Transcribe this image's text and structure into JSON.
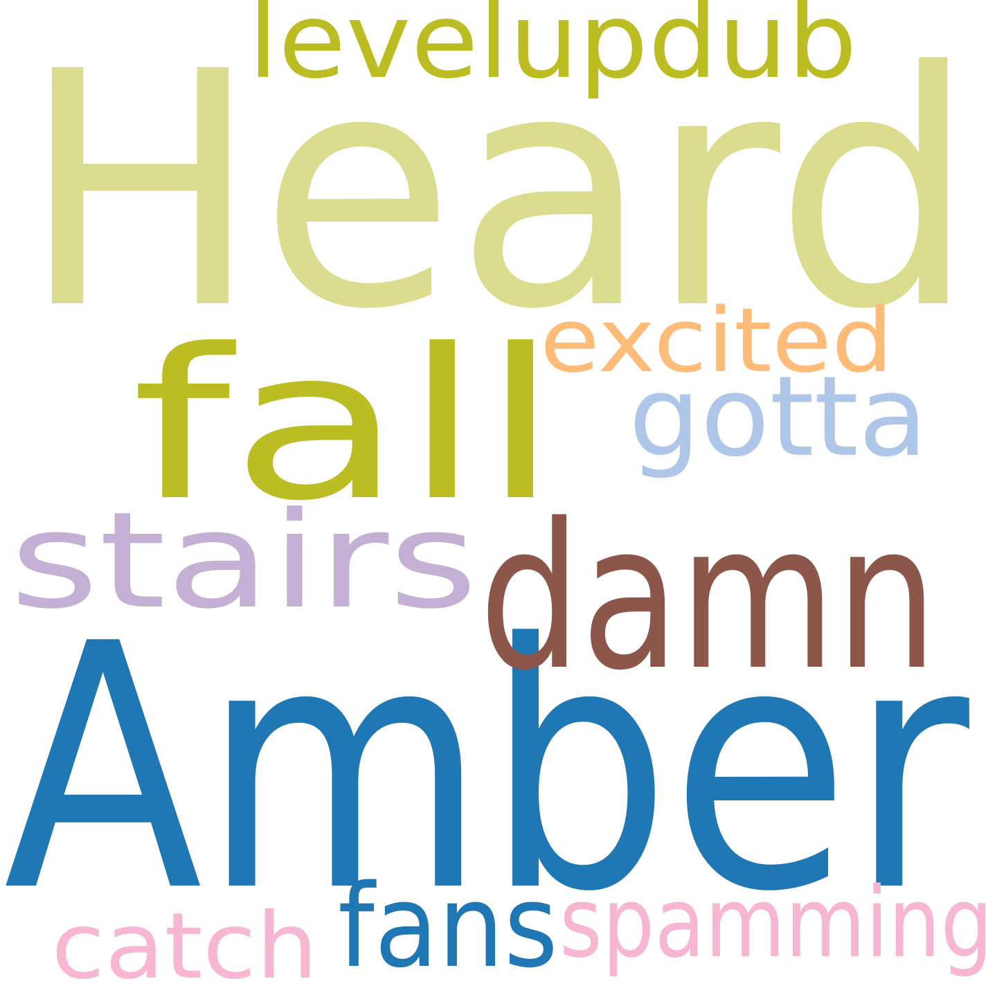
{
  "words": [
    {
      "text": "Heard",
      "color": "#dbdc8d"
    },
    {
      "text": "Amber",
      "color": "#1f77b4"
    },
    {
      "text": "fall",
      "color": "#bcbd22"
    },
    {
      "text": "damn",
      "color": "#8c564b"
    },
    {
      "text": "stairs",
      "color": "#c5b0d5"
    },
    {
      "text": "levelupdub",
      "color": "#bcbd22"
    },
    {
      "text": "excited",
      "color": "#ffbb78"
    },
    {
      "text": "gotta",
      "color": "#aec7e8"
    },
    {
      "text": "fans",
      "color": "#1f77b4"
    },
    {
      "text": "spamming",
      "color": "#f7b6d2"
    },
    {
      "text": "catch",
      "color": "#f7b6d2"
    }
  ]
}
